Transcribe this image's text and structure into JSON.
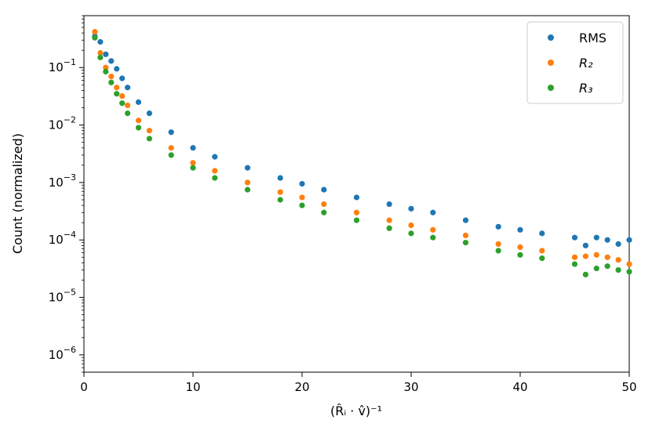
{
  "chart_data": {
    "type": "scatter",
    "xlabel": "(R̂ᵢ · v̂)⁻¹",
    "ylabel": "Count (normalized)",
    "xlim": [
      0,
      50
    ],
    "ylim": [
      5e-07,
      0.8
    ],
    "yscale": "log",
    "grid": false,
    "legend_position": "top-right",
    "x_ticks": [
      0,
      10,
      20,
      30,
      40,
      50
    ],
    "x_tick_labels": [
      "0",
      "10",
      "20",
      "30",
      "40",
      "50"
    ],
    "y_ticks": [
      1e-06,
      1e-05,
      0.0001,
      0.001,
      0.01,
      0.1
    ],
    "y_tick_labels": [
      {
        "base": "10",
        "exp": "−6"
      },
      {
        "base": "10",
        "exp": "−5"
      },
      {
        "base": "10",
        "exp": "−4"
      },
      {
        "base": "10",
        "exp": "−3"
      },
      {
        "base": "10",
        "exp": "−2"
      },
      {
        "base": "10",
        "exp": "−1"
      }
    ],
    "series": [
      {
        "name": "RMS",
        "color": "#1f77b4",
        "x": [
          1.0,
          1.5,
          2.0,
          2.5,
          3.0,
          3.5,
          4.0,
          5.0,
          6.0,
          8.0,
          10.0,
          12.0,
          15.0,
          18.0,
          20.0,
          22.0,
          25.0,
          28.0,
          30.0,
          32.0,
          35.0,
          38.0,
          40.0,
          42.0,
          45.0,
          46.0,
          47.0,
          48.0,
          49.0,
          50.0
        ],
        "y": [
          0.35,
          0.28,
          0.17,
          0.13,
          0.095,
          0.065,
          0.045,
          0.025,
          0.016,
          0.0075,
          0.004,
          0.0028,
          0.0018,
          0.0012,
          0.00095,
          0.00075,
          0.00055,
          0.00042,
          0.00035,
          0.0003,
          0.00022,
          0.00017,
          0.00015,
          0.00013,
          0.00011,
          8e-05,
          0.00011,
          0.0001,
          8.5e-05,
          0.0001
        ]
      },
      {
        "name": "R₂",
        "color": "#ff7f0e",
        "x": [
          1.0,
          1.5,
          2.0,
          2.5,
          3.0,
          3.5,
          4.0,
          5.0,
          6.0,
          8.0,
          10.0,
          12.0,
          15.0,
          18.0,
          20.0,
          22.0,
          25.0,
          28.0,
          30.0,
          32.0,
          35.0,
          38.0,
          40.0,
          42.0,
          45.0,
          46.0,
          47.0,
          48.0,
          49.0,
          50.0
        ],
        "y": [
          0.42,
          0.18,
          0.1,
          0.07,
          0.045,
          0.032,
          0.022,
          0.012,
          0.008,
          0.004,
          0.0022,
          0.0016,
          0.001,
          0.00068,
          0.00055,
          0.00042,
          0.0003,
          0.00022,
          0.00018,
          0.00015,
          0.00012,
          8.5e-05,
          7.5e-05,
          6.5e-05,
          5e-05,
          5.2e-05,
          5.5e-05,
          5e-05,
          4.5e-05,
          3.8e-05
        ]
      },
      {
        "name": "R₃",
        "color": "#2ca02c",
        "x": [
          1.0,
          1.5,
          2.0,
          2.5,
          3.0,
          3.5,
          4.0,
          5.0,
          6.0,
          8.0,
          10.0,
          12.0,
          15.0,
          18.0,
          20.0,
          22.0,
          25.0,
          28.0,
          30.0,
          32.0,
          35.0,
          38.0,
          40.0,
          42.0,
          45.0,
          46.0,
          47.0,
          48.0,
          49.0,
          50.0
        ],
        "y": [
          0.33,
          0.15,
          0.085,
          0.055,
          0.035,
          0.024,
          0.016,
          0.009,
          0.0058,
          0.003,
          0.0018,
          0.0012,
          0.00075,
          0.0005,
          0.0004,
          0.0003,
          0.00022,
          0.00016,
          0.00013,
          0.00011,
          9e-05,
          6.5e-05,
          5.5e-05,
          4.8e-05,
          3.8e-05,
          2.5e-05,
          3.2e-05,
          3.5e-05,
          3e-05,
          2.8e-05
        ]
      }
    ]
  }
}
